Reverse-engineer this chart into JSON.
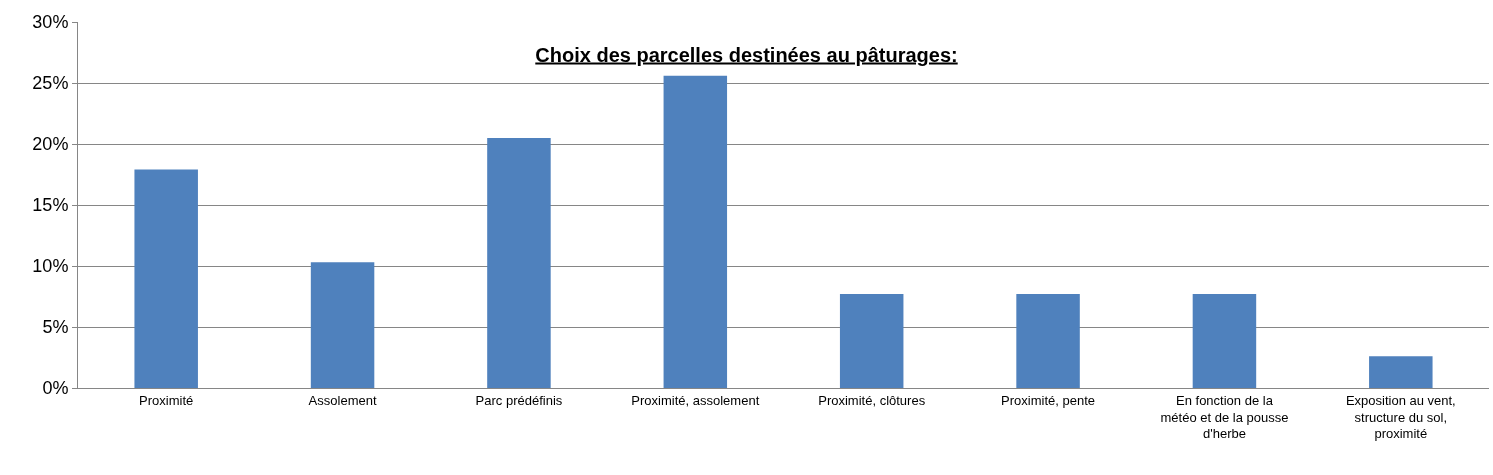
{
  "chart_data": {
    "type": "bar",
    "title": "Choix des parcelles destinées au pâturages:",
    "categories": [
      "Proximité",
      "Assolement",
      "Parc prédéfinis",
      "Proximité, assolement",
      "Proximité, clôtures",
      "Proximité, pente",
      "En fonction de la météo et de la pousse d'herbe",
      "Exposition au vent, structure du sol, proximité"
    ],
    "values": [
      17.9,
      10.3,
      20.5,
      25.6,
      7.7,
      7.7,
      7.7,
      2.6
    ],
    "color": "#4f81bd",
    "ylim": [
      0,
      30
    ],
    "yticks": [
      {
        "value": 0,
        "label": "0%"
      },
      {
        "value": 5,
        "label": "5%"
      },
      {
        "value": 10,
        "label": "10%"
      },
      {
        "value": 15,
        "label": "15%"
      },
      {
        "value": 20,
        "label": "20%"
      },
      {
        "value": 25,
        "label": "25%"
      },
      {
        "value": 30,
        "label": "30%"
      }
    ],
    "grid": "y"
  }
}
